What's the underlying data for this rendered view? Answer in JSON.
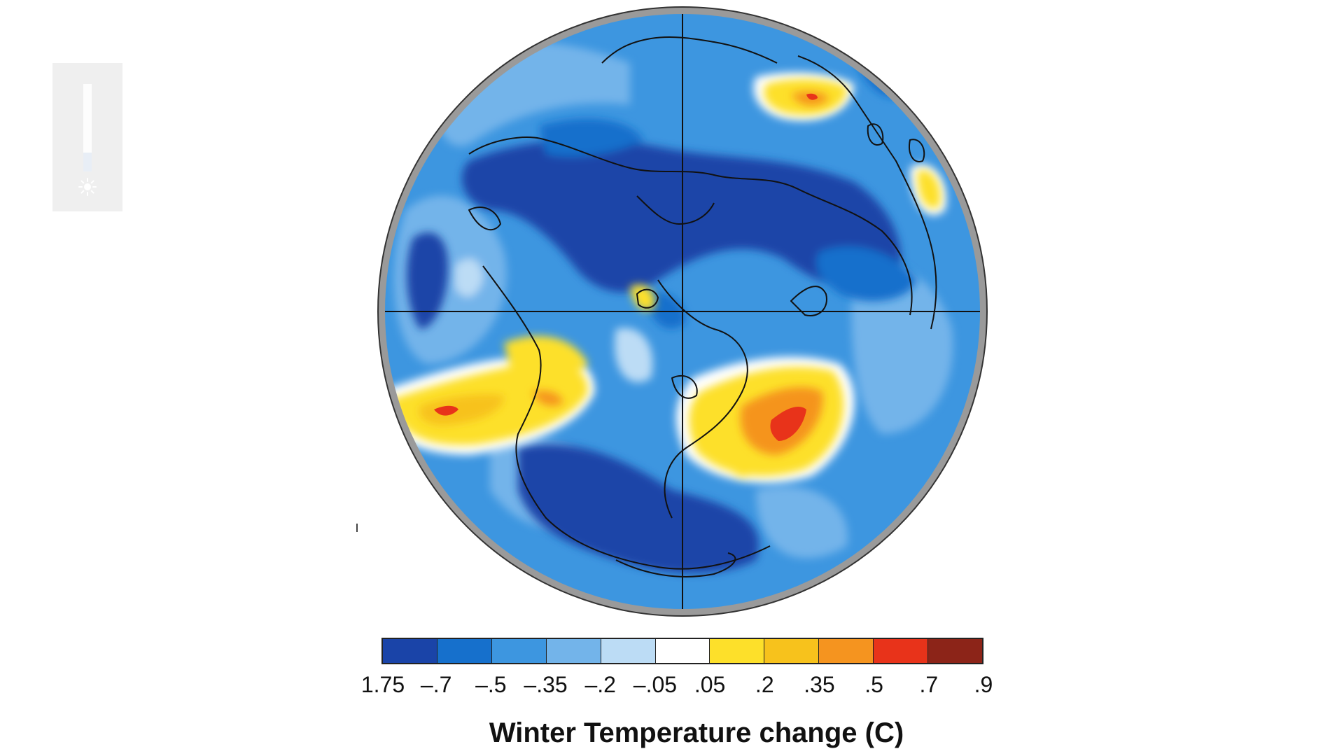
{
  "brightness_widget": {
    "level_fraction": 0.78,
    "icon": "sun-icon"
  },
  "map": {
    "projection": "north-polar-orthographic",
    "grid_lines": "cross",
    "rim_color": "#9a9a9a",
    "coast_color": "#111111"
  },
  "legend": {
    "caption": "Winter Temperature change (C)",
    "ticks": [
      "1.75",
      "–.7",
      "–.5",
      "–.35",
      "–.2",
      "–.05",
      ".05",
      ".2",
      ".35",
      ".5",
      ".7",
      ".9"
    ],
    "colors": [
      "#1a44a8",
      "#1670cc",
      "#3d96e0",
      "#73b4ea",
      "#bcdcf5",
      "#ffffff",
      "#fde02a",
      "#f7c21c",
      "#f5941f",
      "#e8331a",
      "#8c2418"
    ]
  }
}
